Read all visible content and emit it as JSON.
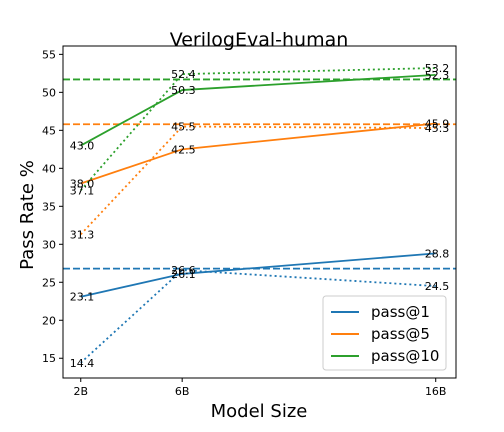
{
  "chart_data": {
    "type": "line",
    "title": "VerilogEval-human",
    "x_label": "Model Size",
    "y_label": "Pass Rate %",
    "x": [
      2,
      6,
      16
    ],
    "xlim": [
      1.3,
      16.8
    ],
    "xticks": [
      {
        "value": 2,
        "label": "2B"
      },
      {
        "value": 6,
        "label": "6B"
      },
      {
        "value": 16,
        "label": "16B"
      }
    ],
    "ylim": [
      12.4,
      56.1
    ],
    "yticks": [
      15,
      20,
      25,
      30,
      35,
      40,
      45,
      50,
      55
    ],
    "legend": "lower right",
    "series": [
      {
        "name": "pass@1",
        "color": "#1f77b4",
        "linestyle": "solid",
        "values": [
          23.1,
          26.1,
          28.8
        ],
        "value_labels": [
          "23.1",
          "26.1",
          "28.8"
        ]
      },
      {
        "name": "pass@5",
        "color": "#ff7f0e",
        "linestyle": "solid",
        "values": [
          38.0,
          42.5,
          45.9
        ],
        "value_labels": [
          "38.0",
          "42.5",
          "45.9"
        ]
      },
      {
        "name": "pass@10",
        "color": "#2ca02c",
        "linestyle": "solid",
        "values": [
          43.0,
          50.3,
          52.3
        ],
        "value_labels": [
          "43.0",
          "50.3",
          "52.3"
        ]
      },
      {
        "color": "#1f77b4",
        "linestyle": "dotted",
        "values": [
          14.4,
          26.6,
          24.5
        ],
        "value_labels": [
          "14.4",
          "26.6",
          "24.5"
        ]
      },
      {
        "color": "#ff7f0e",
        "linestyle": "dotted",
        "values": [
          31.3,
          45.5,
          45.3
        ],
        "value_labels": [
          "31.3",
          "45.5",
          "45.3"
        ]
      },
      {
        "color": "#2ca02c",
        "linestyle": "dotted",
        "values": [
          37.1,
          52.4,
          53.2
        ],
        "value_labels": [
          "37.1",
          "52.4",
          "53.2"
        ]
      }
    ],
    "reference_lines": [
      {
        "color": "#2ca02c",
        "value": 51.7
      },
      {
        "color": "#ff7f0e",
        "value": 45.8
      },
      {
        "color": "#1f77b4",
        "value": 26.8
      }
    ]
  }
}
